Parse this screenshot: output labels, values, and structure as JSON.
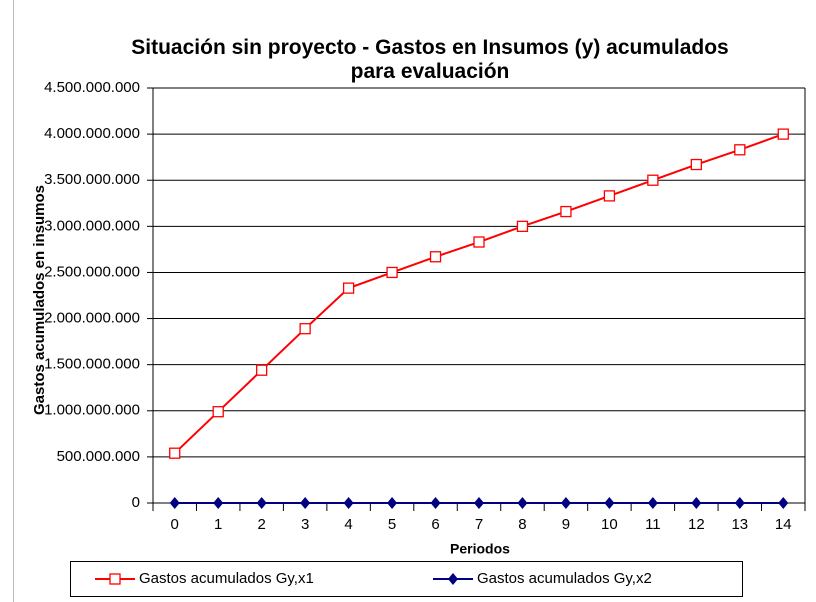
{
  "chart_data": {
    "type": "line",
    "title": "Situación sin proyecto - Gastos en Insumos (y) acumulados  para evaluación",
    "x_label": "Periodos",
    "y_label": "Gastos acumulados en insumos",
    "categories": [
      "0",
      "1",
      "2",
      "3",
      "4",
      "5",
      "6",
      "7",
      "8",
      "9",
      "10",
      "11",
      "12",
      "13",
      "14"
    ],
    "series": [
      {
        "name": "Gastos acumulados Gy,x1",
        "color": "#ff0000",
        "marker": "square",
        "values": [
          540000000,
          990000000,
          1440000000,
          1890000000,
          2330000000,
          2500000000,
          2670000000,
          2830000000,
          3000000000,
          3160000000,
          3330000000,
          3500000000,
          3670000000,
          3830000000,
          4000000000
        ]
      },
      {
        "name": "Gastos acumulados Gy,x2",
        "color": "#000080",
        "marker": "diamond",
        "values": [
          0,
          0,
          0,
          0,
          0,
          0,
          0,
          0,
          0,
          0,
          0,
          0,
          0,
          0,
          0
        ]
      }
    ],
    "ylim": [
      0,
      4500000000
    ],
    "yticks": [
      0,
      {
        "value": 500000000,
        "label": "500.000.000"
      },
      {
        "value": 1000000000,
        "label": "1.000.000.000"
      },
      {
        "value": 1500000000,
        "label": "1.500.000.000"
      },
      {
        "value": 2000000000,
        "label": "2.000.000.000"
      },
      {
        "value": 2500000000,
        "label": "2.500.000.000"
      },
      {
        "value": 3000000000,
        "label": "3.000.000.000"
      },
      {
        "value": 3500000000,
        "label": "3.500.000.000"
      },
      {
        "value": 4000000000,
        "label": "4.000.000.000"
      },
      {
        "value": 4500000000,
        "label": "4.500.000.000"
      }
    ],
    "grid": true,
    "legend": "bottom"
  }
}
